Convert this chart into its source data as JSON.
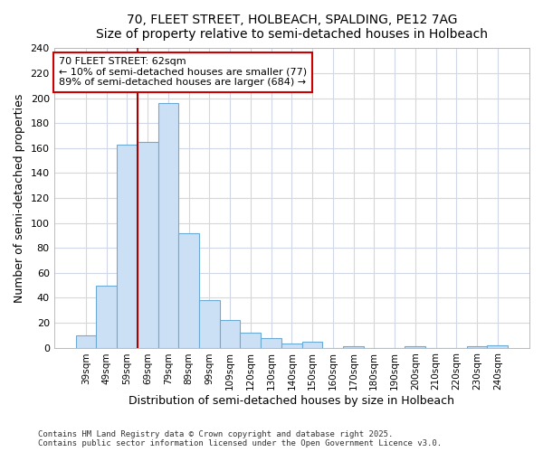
{
  "title_line1": "70, FLEET STREET, HOLBEACH, SPALDING, PE12 7AG",
  "title_line2": "Size of property relative to semi-detached houses in Holbeach",
  "xlabel": "Distribution of semi-detached houses by size in Holbeach",
  "ylabel": "Number of semi-detached properties",
  "categories": [
    "39sqm",
    "49sqm",
    "59sqm",
    "69sqm",
    "79sqm",
    "89sqm",
    "99sqm",
    "109sqm",
    "120sqm",
    "130sqm",
    "140sqm",
    "150sqm",
    "160sqm",
    "170sqm",
    "180sqm",
    "190sqm",
    "200sqm",
    "210sqm",
    "220sqm",
    "230sqm",
    "240sqm"
  ],
  "values": [
    10,
    50,
    163,
    165,
    196,
    92,
    38,
    22,
    12,
    8,
    3,
    5,
    0,
    1,
    0,
    0,
    1,
    0,
    0,
    1,
    2
  ],
  "bar_color": "#cce0f5",
  "bar_edge_color": "#6aaad4",
  "background_color": "#ffffff",
  "plot_bg_color": "#ffffff",
  "grid_color": "#d0d8e8",
  "vline_color": "#aa0000",
  "vline_x_index": 2.5,
  "annotation_text": "70 FLEET STREET: 62sqm\n← 10% of semi-detached houses are smaller (77)\n89% of semi-detached houses are larger (684) →",
  "annotation_box_color": "#cc0000",
  "ylim": [
    0,
    240
  ],
  "yticks": [
    0,
    20,
    40,
    60,
    80,
    100,
    120,
    140,
    160,
    180,
    200,
    220,
    240
  ],
  "footnote1": "Contains HM Land Registry data © Crown copyright and database right 2025.",
  "footnote2": "Contains public sector information licensed under the Open Government Licence v3.0."
}
